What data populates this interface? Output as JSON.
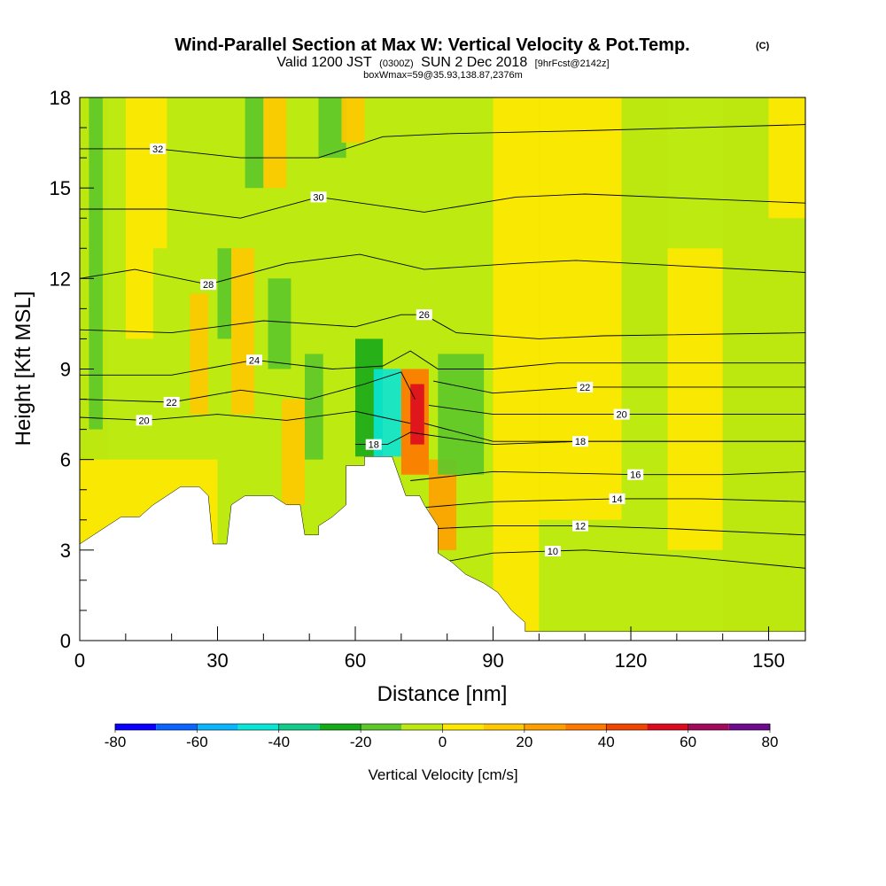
{
  "header": {
    "title_main": "Wind-Parallel Section at Max W: Vertical Velocity & Pot.Temp.",
    "title_mark": "(C)",
    "subtitle_a": "Valid 1200 JST",
    "subtitle_b": "(0300Z)",
    "subtitle_c": "SUN 2 Dec 2018",
    "subtitle_d": "[9hrFcst@2142z]",
    "subtitle_2": "boxWmax=59@35.93,138.87,2376m"
  },
  "colors": {
    "background": "#ffffff",
    "terrain": "#ffffff",
    "contour_line": "#000000",
    "field": {
      "neg_strong": "#0ccfa0",
      "neg_mid": "#16b41c",
      "neg_weak": "#5ccc2a",
      "neutral": "#bdea10",
      "pos_weak": "#ffe400",
      "pos_mid": "#ffb400",
      "pos_strong": "#ff8c14",
      "pos_max": "#f02814"
    }
  },
  "colorbar": {
    "title": "Vertical Velocity [cm/s]",
    "bins": [
      {
        "lo": -80,
        "hi": -70,
        "color": "#0a00ff"
      },
      {
        "lo": -70,
        "hi": -60,
        "color": "#0a64ff"
      },
      {
        "lo": -60,
        "hi": -50,
        "color": "#0ab4ff"
      },
      {
        "lo": -50,
        "hi": -40,
        "color": "#0ae6d6"
      },
      {
        "lo": -40,
        "hi": -30,
        "color": "#12cc8c"
      },
      {
        "lo": -30,
        "hi": -20,
        "color": "#16aa18"
      },
      {
        "lo": -20,
        "hi": -10,
        "color": "#5cc82a"
      },
      {
        "lo": -10,
        "hi": 0,
        "color": "#bde810"
      },
      {
        "lo": 0,
        "hi": 10,
        "color": "#ffe800"
      },
      {
        "lo": 10,
        "hi": 20,
        "color": "#ffc800"
      },
      {
        "lo": 20,
        "hi": 30,
        "color": "#ffa000"
      },
      {
        "lo": 30,
        "hi": 40,
        "color": "#ff7800"
      },
      {
        "lo": 40,
        "hi": 50,
        "color": "#f04600"
      },
      {
        "lo": 50,
        "hi": 60,
        "color": "#dc0a1e"
      },
      {
        "lo": 60,
        "hi": 70,
        "color": "#a00a5a"
      },
      {
        "lo": 70,
        "hi": 80,
        "color": "#6e0a8c"
      }
    ],
    "tick_labels": [
      "-80",
      "-60",
      "-40",
      "-20",
      "0",
      "20",
      "40",
      "60",
      "80"
    ]
  },
  "chart_data": {
    "type": "heatmap",
    "field": "Vertical Velocity",
    "contour_field": "Potential Temperature",
    "xlabel": "Distance [nm]",
    "ylabel": "Height [Kft MSL]",
    "xlim": [
      0,
      158
    ],
    "ylim": [
      0,
      18
    ],
    "x_ticks": [
      0,
      30,
      60,
      90,
      120,
      150
    ],
    "y_ticks": [
      0,
      3,
      6,
      9,
      12,
      15,
      18
    ],
    "x_tick_labels": [
      "0",
      "30",
      "60",
      "90",
      "120",
      "150"
    ],
    "y_tick_labels": [
      "0",
      "3",
      "6",
      "9",
      "12",
      "15",
      "18"
    ],
    "w_range_cm_s": [
      -80,
      80
    ],
    "max_w_cm_s": 59,
    "terrain_kft": [
      [
        0,
        3.2
      ],
      [
        3,
        3.5
      ],
      [
        6,
        3.8
      ],
      [
        9,
        4.1
      ],
      [
        13,
        4.1
      ],
      [
        16,
        4.5
      ],
      [
        19,
        4.8
      ],
      [
        22,
        5.1
      ],
      [
        26,
        5.1
      ],
      [
        28,
        4.8
      ],
      [
        29,
        3.2
      ],
      [
        32,
        3.2
      ],
      [
        33,
        4.5
      ],
      [
        36,
        4.8
      ],
      [
        39,
        4.8
      ],
      [
        42,
        4.8
      ],
      [
        45,
        4.5
      ],
      [
        48,
        4.5
      ],
      [
        49,
        3.5
      ],
      [
        52,
        3.5
      ],
      [
        52,
        3.8
      ],
      [
        55,
        4.1
      ],
      [
        58,
        4.5
      ],
      [
        58,
        5.8
      ],
      [
        62,
        5.8
      ],
      [
        62,
        6.1
      ],
      [
        68,
        6.1
      ],
      [
        71,
        4.8
      ],
      [
        74,
        4.8
      ],
      [
        75,
        4.5
      ],
      [
        78,
        3.8
      ],
      [
        78,
        2.9
      ],
      [
        81,
        2.6
      ],
      [
        84,
        2.2
      ],
      [
        88,
        1.9
      ],
      [
        91,
        1.6
      ],
      [
        94,
        1.0
      ],
      [
        97,
        0.6
      ],
      [
        97,
        0.3
      ],
      [
        158,
        0.3
      ]
    ],
    "w_cells": [
      {
        "x": [
          0,
          6
        ],
        "y": [
          3.2,
          18
        ],
        "w": -5
      },
      {
        "x": [
          2,
          5
        ],
        "y": [
          7,
          18
        ],
        "w": -15
      },
      {
        "x": [
          0,
          30
        ],
        "y": [
          3,
          6
        ],
        "w": 8
      },
      {
        "x": [
          10,
          16
        ],
        "y": [
          10,
          18
        ],
        "w": 6
      },
      {
        "x": [
          16,
          19
        ],
        "y": [
          13,
          18
        ],
        "w": 5
      },
      {
        "x": [
          24,
          28
        ],
        "y": [
          7.5,
          11.5
        ],
        "w": 15
      },
      {
        "x": [
          30,
          33
        ],
        "y": [
          10,
          13
        ],
        "w": -15
      },
      {
        "x": [
          33,
          38
        ],
        "y": [
          7.5,
          13
        ],
        "w": 18
      },
      {
        "x": [
          36,
          40
        ],
        "y": [
          15,
          18
        ],
        "w": -12
      },
      {
        "x": [
          40,
          45
        ],
        "y": [
          15,
          18
        ],
        "w": 15
      },
      {
        "x": [
          41,
          46
        ],
        "y": [
          9,
          12
        ],
        "w": -18
      },
      {
        "x": [
          44,
          49
        ],
        "y": [
          4.5,
          8
        ],
        "w": 12
      },
      {
        "x": [
          49,
          53
        ],
        "y": [
          6,
          9.5
        ],
        "w": -12
      },
      {
        "x": [
          52,
          58
        ],
        "y": [
          16,
          18
        ],
        "w": -12
      },
      {
        "x": [
          57,
          62
        ],
        "y": [
          16.5,
          18
        ],
        "w": 18
      },
      {
        "x": [
          60,
          66
        ],
        "y": [
          6.1,
          10
        ],
        "w": -25
      },
      {
        "x": [
          64,
          70
        ],
        "y": [
          6.1,
          9
        ],
        "w": -45
      },
      {
        "x": [
          70,
          76
        ],
        "y": [
          5.5,
          9
        ],
        "w": 30
      },
      {
        "x": [
          72,
          75
        ],
        "y": [
          6.5,
          8.5
        ],
        "w": 55
      },
      {
        "x": [
          76,
          82
        ],
        "y": [
          3,
          6
        ],
        "w": 20
      },
      {
        "x": [
          78,
          88
        ],
        "y": [
          5.5,
          9.5
        ],
        "w": -15
      },
      {
        "x": [
          90,
          100
        ],
        "y": [
          0.3,
          18
        ],
        "w": 5
      },
      {
        "x": [
          100,
          118
        ],
        "y": [
          4,
          18
        ],
        "w": 5
      },
      {
        "x": [
          118,
          128
        ],
        "y": [
          10,
          18
        ],
        "w": -5
      },
      {
        "x": [
          128,
          140
        ],
        "y": [
          3,
          13
        ],
        "w": 5
      },
      {
        "x": [
          140,
          158
        ],
        "y": [
          0.3,
          18
        ],
        "w": -3
      },
      {
        "x": [
          150,
          158
        ],
        "y": [
          14,
          18
        ],
        "w": 6
      }
    ],
    "theta_contours": [
      {
        "level": 10,
        "label_x": 103,
        "points": [
          [
            79,
            2.6
          ],
          [
            90,
            2.9
          ],
          [
            110,
            3.0
          ],
          [
            130,
            2.8
          ],
          [
            158,
            2.4
          ]
        ]
      },
      {
        "level": 12,
        "label_x": 109,
        "points": [
          [
            76,
            3.7
          ],
          [
            90,
            3.8
          ],
          [
            110,
            3.8
          ],
          [
            130,
            3.7
          ],
          [
            158,
            3.5
          ]
        ]
      },
      {
        "level": 14,
        "label_x": 117,
        "points": [
          [
            74,
            4.4
          ],
          [
            90,
            4.6
          ],
          [
            117,
            4.7
          ],
          [
            135,
            4.7
          ],
          [
            158,
            4.6
          ]
        ]
      },
      {
        "level": 16,
        "label_x": 121,
        "points": [
          [
            72,
            5.3
          ],
          [
            90,
            5.6
          ],
          [
            121,
            5.5
          ],
          [
            140,
            5.5
          ],
          [
            158,
            5.6
          ]
        ]
      },
      {
        "level": 18,
        "label_x": 64,
        "points": [
          [
            60,
            6.5
          ],
          [
            67,
            6.5
          ],
          [
            72,
            6.9
          ],
          [
            90,
            6.5
          ],
          [
            109,
            6.6
          ],
          [
            158,
            6.6
          ]
        ]
      },
      {
        "level": 18,
        "label_x": 109,
        "points": [
          [
            75,
            7.2
          ],
          [
            90,
            6.6
          ],
          [
            109,
            6.6
          ],
          [
            130,
            6.6
          ],
          [
            158,
            6.6
          ]
        ]
      },
      {
        "level": 20,
        "label_x": 14,
        "points": [
          [
            0,
            7.4
          ],
          [
            14,
            7.3
          ],
          [
            30,
            7.5
          ],
          [
            45,
            7.3
          ],
          [
            60,
            7.6
          ],
          [
            66,
            7.4
          ],
          [
            72,
            7.2
          ]
        ]
      },
      {
        "level": 20,
        "label_x": 118,
        "points": [
          [
            76,
            7.8
          ],
          [
            90,
            7.5
          ],
          [
            118,
            7.5
          ],
          [
            158,
            7.5
          ]
        ]
      },
      {
        "level": 22,
        "label_x": 20,
        "points": [
          [
            0,
            8.0
          ],
          [
            20,
            7.9
          ],
          [
            35,
            8.3
          ],
          [
            50,
            8.0
          ],
          [
            62,
            8.5
          ],
          [
            70,
            8.9
          ],
          [
            73,
            8.0
          ]
        ]
      },
      {
        "level": 22,
        "label_x": 110,
        "points": [
          [
            77,
            8.6
          ],
          [
            90,
            8.2
          ],
          [
            110,
            8.4
          ],
          [
            158,
            8.4
          ]
        ]
      },
      {
        "level": 24,
        "label_x": 38,
        "points": [
          [
            0,
            8.8
          ],
          [
            20,
            8.8
          ],
          [
            38,
            9.3
          ],
          [
            55,
            9.0
          ],
          [
            66,
            9.1
          ],
          [
            72,
            9.6
          ],
          [
            78,
            9.0
          ],
          [
            90,
            9.0
          ],
          [
            104,
            9.2
          ],
          [
            158,
            9.2
          ]
        ]
      },
      {
        "level": 26,
        "label_x": 75,
        "points": [
          [
            0,
            10.3
          ],
          [
            20,
            10.2
          ],
          [
            40,
            10.6
          ],
          [
            60,
            10.4
          ],
          [
            70,
            10.8
          ],
          [
            75,
            10.8
          ],
          [
            82,
            10.2
          ],
          [
            100,
            10.0
          ],
          [
            114,
            10.1
          ],
          [
            158,
            10.2
          ]
        ]
      },
      {
        "level": 28,
        "label_x": 28,
        "points": [
          [
            0,
            12.0
          ],
          [
            12,
            12.3
          ],
          [
            28,
            11.8
          ],
          [
            45,
            12.5
          ],
          [
            61,
            12.8
          ],
          [
            75,
            12.3
          ],
          [
            95,
            12.5
          ],
          [
            108,
            12.6
          ],
          [
            158,
            12.2
          ]
        ]
      },
      {
        "level": 30,
        "label_x": 52,
        "points": [
          [
            0,
            14.3
          ],
          [
            19,
            14.3
          ],
          [
            35,
            14.0
          ],
          [
            52,
            14.7
          ],
          [
            75,
            14.2
          ],
          [
            95,
            14.7
          ],
          [
            110,
            14.8
          ],
          [
            158,
            14.5
          ]
        ]
      },
      {
        "level": 32,
        "label_x": 17,
        "points": [
          [
            0,
            16.3
          ],
          [
            17,
            16.3
          ],
          [
            35,
            16.0
          ],
          [
            52,
            16.0
          ],
          [
            66,
            16.7
          ],
          [
            80,
            16.8
          ],
          [
            110,
            16.9
          ],
          [
            158,
            17.1
          ]
        ]
      }
    ]
  }
}
